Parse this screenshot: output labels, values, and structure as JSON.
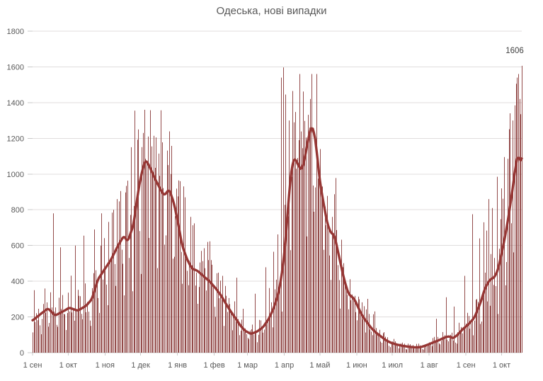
{
  "title": "Одеська, нові випадки",
  "annotation": {
    "label": "1606"
  },
  "colors": {
    "bar": "#8a3b39",
    "line": "#963634",
    "grid": "#e0dddd",
    "axis_line": "#cfcfcf",
    "tick_mark": "#c8c8c8",
    "axis_text": "#595959",
    "title_text": "#595959",
    "background": "#ffffff"
  },
  "chart_data": {
    "type": "bar",
    "title": "Одеська, нові випадки",
    "subtitle": "",
    "xlabel": "",
    "ylabel": "",
    "legend": "none",
    "grid": "horizontal",
    "ylim": [
      0,
      1800
    ],
    "y_ticks": [
      0,
      200,
      400,
      600,
      800,
      1000,
      1200,
      1400,
      1600,
      1800
    ],
    "x_tick_labels": [
      "1 сен",
      "1 окт",
      "1 ноя",
      "1 дек",
      "1 янв",
      "1 фев",
      "1 мар",
      "1 апр",
      "1 май",
      "1 июн",
      "1 июл",
      "1 авг",
      "1 сен",
      "1 окт"
    ],
    "x_tick_days": [
      0,
      30,
      61,
      91,
      122,
      153,
      181,
      212,
      242,
      273,
      303,
      334,
      365,
      395
    ],
    "days_total": 413,
    "avg_line_keypoints": [
      [
        0,
        180
      ],
      [
        6,
        212
      ],
      [
        13,
        248
      ],
      [
        19,
        208
      ],
      [
        26,
        232
      ],
      [
        31,
        252
      ],
      [
        38,
        235
      ],
      [
        45,
        262
      ],
      [
        50,
        300
      ],
      [
        55,
        410
      ],
      [
        60,
        460
      ],
      [
        66,
        520
      ],
      [
        72,
        600
      ],
      [
        77,
        655
      ],
      [
        80,
        620
      ],
      [
        85,
        715
      ],
      [
        89,
        905
      ],
      [
        92,
        1010
      ],
      [
        95,
        1080
      ],
      [
        98,
        1050
      ],
      [
        103,
        975
      ],
      [
        108,
        910
      ],
      [
        111,
        880
      ],
      [
        115,
        915
      ],
      [
        119,
        840
      ],
      [
        123,
        710
      ],
      [
        126,
        600
      ],
      [
        130,
        525
      ],
      [
        134,
        472
      ],
      [
        139,
        458
      ],
      [
        144,
        428
      ],
      [
        149,
        400
      ],
      [
        154,
        362
      ],
      [
        159,
        318
      ],
      [
        163,
        272
      ],
      [
        167,
        230
      ],
      [
        171,
        192
      ],
      [
        175,
        152
      ],
      [
        179,
        122
      ],
      [
        184,
        105
      ],
      [
        189,
        118
      ],
      [
        194,
        142
      ],
      [
        199,
        190
      ],
      [
        203,
        248
      ],
      [
        207,
        330
      ],
      [
        210,
        440
      ],
      [
        213,
        620
      ],
      [
        215,
        800
      ],
      [
        217,
        960
      ],
      [
        219,
        1065
      ],
      [
        221,
        1090
      ],
      [
        224,
        1045
      ],
      [
        227,
        1022
      ],
      [
        230,
        1115
      ],
      [
        233,
        1225
      ],
      [
        235,
        1268
      ],
      [
        237,
        1240
      ],
      [
        239,
        1150
      ],
      [
        242,
        955
      ],
      [
        245,
        840
      ],
      [
        248,
        730
      ],
      [
        251,
        672
      ],
      [
        254,
        660
      ],
      [
        257,
        575
      ],
      [
        260,
        480
      ],
      [
        263,
        395
      ],
      [
        266,
        330
      ],
      [
        268,
        318
      ],
      [
        271,
        300
      ],
      [
        274,
        258
      ],
      [
        277,
        215
      ],
      [
        280,
        185
      ],
      [
        283,
        158
      ],
      [
        286,
        132
      ],
      [
        290,
        108
      ],
      [
        294,
        88
      ],
      [
        298,
        68
      ],
      [
        302,
        55
      ],
      [
        307,
        45
      ],
      [
        312,
        38
      ],
      [
        317,
        33
      ],
      [
        322,
        30
      ],
      [
        327,
        31
      ],
      [
        331,
        40
      ],
      [
        337,
        56
      ],
      [
        343,
        72
      ],
      [
        347,
        85
      ],
      [
        351,
        92
      ],
      [
        354,
        80
      ],
      [
        358,
        100
      ],
      [
        362,
        130
      ],
      [
        367,
        158
      ],
      [
        372,
        195
      ],
      [
        377,
        275
      ],
      [
        381,
        360
      ],
      [
        385,
        408
      ],
      [
        389,
        422
      ],
      [
        392,
        465
      ],
      [
        395,
        555
      ],
      [
        398,
        650
      ],
      [
        401,
        770
      ],
      [
        404,
        900
      ],
      [
        406,
        1010
      ],
      [
        408,
        1080
      ],
      [
        409,
        1130
      ],
      [
        410,
        1062
      ],
      [
        412,
        1092
      ]
    ],
    "bar_spikes": {
      "17": 780,
      "23": 590,
      "36": 600,
      "43": 655,
      "52": 690,
      "58": 780,
      "68": 800,
      "74": 905,
      "83": 1150,
      "86": 1355,
      "89": 1250,
      "94": 1360,
      "97": 1210,
      "100": 1155,
      "104": 1205,
      "107": 990,
      "116": 1000,
      "124": 960,
      "128": 870,
      "133": 760,
      "147": 620,
      "160": 430,
      "172": 420,
      "187": 330,
      "196": 478,
      "203": 565,
      "206": 662,
      "209": 1540,
      "211": 1597,
      "213": 1445,
      "216": 1300,
      "219": 1465,
      "224": 1190,
      "227": 1145,
      "230": 1205,
      "234": 1420,
      "240": 975,
      "244": 930,
      "252": 760,
      "279": 260,
      "287": 215,
      "340": 190,
      "348": 310,
      "355": 258,
      "364": 430,
      "370": 775,
      "376": 640,
      "380": 730,
      "384": 860,
      "387": 810,
      "391": 985,
      "395": 920,
      "397": 1095,
      "400": 1085,
      "402": 1340,
      "404": 1300,
      "406": 1385,
      "408": 1540,
      "410": 1420,
      "411": 1335,
      "412": 1606
    },
    "last_bar": {
      "day": 412,
      "value": 1606,
      "label": "1606"
    },
    "noise": {
      "seed": 20211018,
      "weekday_factors": [
        0.62,
        1.12,
        1.22,
        1.18,
        1.1,
        1.02,
        0.78
      ],
      "jitter_min": 0.72,
      "jitter_span": 0.62
    }
  }
}
